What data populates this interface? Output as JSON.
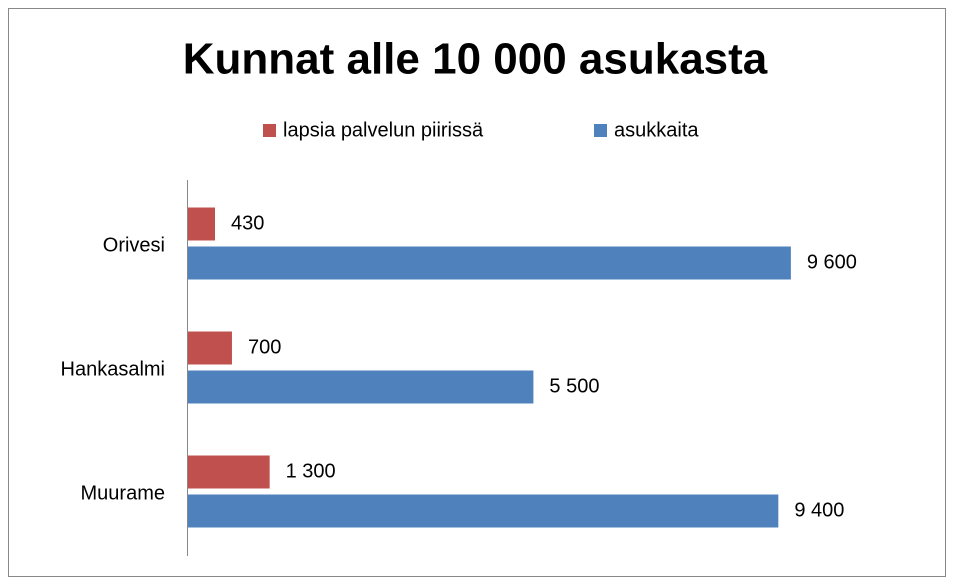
{
  "chart_data": {
    "type": "bar",
    "orientation": "horizontal",
    "title": "Kunnat alle 10 000 asukasta",
    "categories": [
      "Orivesi",
      "Hankasalmi",
      "Muurame"
    ],
    "series": [
      {
        "name": "lapsia palvelun piirissä",
        "color": "#c0504d",
        "values": [
          430,
          700,
          1300
        ],
        "value_labels": [
          "430",
          "700",
          "1 300"
        ]
      },
      {
        "name": "asukkaita",
        "color": "#4f81bd",
        "values": [
          9600,
          5500,
          9400
        ],
        "value_labels": [
          "9 600",
          "5 500",
          "9 400"
        ]
      }
    ],
    "xlim": [
      0,
      10000
    ],
    "legend": "top"
  }
}
